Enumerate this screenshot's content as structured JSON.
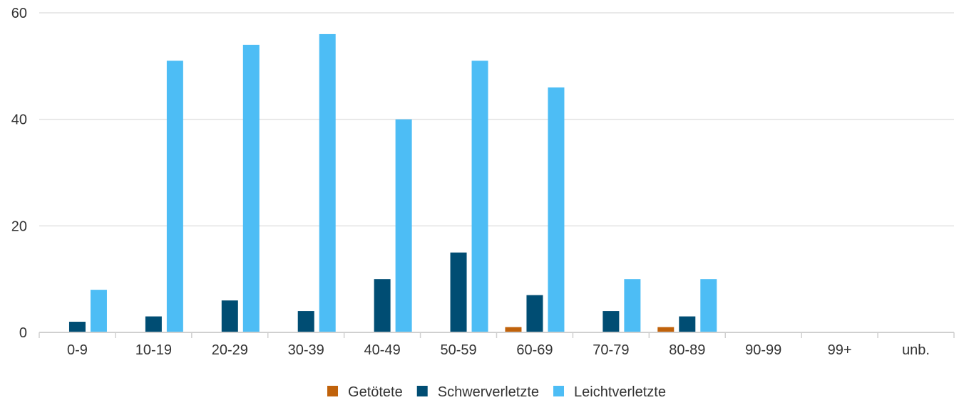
{
  "chart_data": {
    "type": "bar",
    "title": "",
    "xlabel": "",
    "ylabel": "",
    "ylim": [
      0,
      60
    ],
    "yticks": [
      0,
      20,
      40,
      60
    ],
    "grid": true,
    "legend_position": "bottom-center",
    "categories": [
      "0-9",
      "10-19",
      "20-29",
      "30-39",
      "40-49",
      "50-59",
      "60-69",
      "70-79",
      "80-89",
      "90-99",
      "99+",
      "unb."
    ],
    "series": [
      {
        "name": "Getötete",
        "color": "#c0620b",
        "values": [
          0,
          0,
          0,
          0,
          0,
          0,
          1,
          0,
          1,
          0,
          0,
          0
        ]
      },
      {
        "name": "Schwerverletzte",
        "color": "#004d73",
        "values": [
          2,
          3,
          6,
          4,
          10,
          15,
          7,
          4,
          3,
          0,
          0,
          0
        ]
      },
      {
        "name": "Leichtverletzte",
        "color": "#4dbdf5",
        "values": [
          8,
          51,
          54,
          56,
          40,
          51,
          46,
          10,
          10,
          0,
          0,
          0
        ]
      }
    ]
  }
}
